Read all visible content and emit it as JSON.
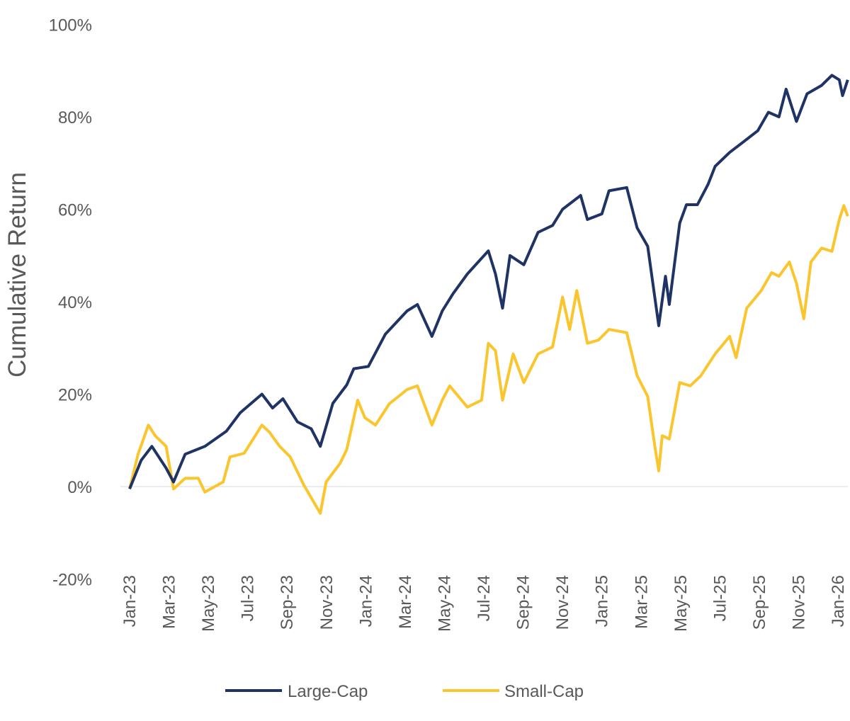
{
  "chart_data": {
    "type": "line",
    "title": "",
    "xlabel": "",
    "ylabel": "Cumulative Return",
    "ylim": [
      -20,
      100
    ],
    "y_ticks": [
      "100%",
      "80%",
      "60%",
      "40%",
      "20%",
      "0%",
      "-20%"
    ],
    "y_tick_values": [
      100,
      80,
      60,
      40,
      20,
      0,
      -20
    ],
    "x_ticks": [
      "Jan-23",
      "Mar-23",
      "May-23",
      "Jul-23",
      "Sep-23",
      "Nov-23",
      "Jan-24",
      "Mar-24",
      "May-24",
      "Jul-24",
      "Sep-24",
      "Nov-24",
      "Jan-25",
      "Mar-25",
      "May-25",
      "Jul-25",
      "Sep-25",
      "Nov-25",
      "Jan-26"
    ],
    "x_tick_dates": [
      "2023-01-01",
      "2023-03-01",
      "2023-05-01",
      "2023-07-01",
      "2023-09-01",
      "2023-11-01",
      "2024-01-01",
      "2024-03-01",
      "2024-05-01",
      "2024-07-01",
      "2024-09-01",
      "2024-11-01",
      "2025-01-01",
      "2025-03-01",
      "2025-05-01",
      "2025-07-01",
      "2025-09-01",
      "2025-11-01",
      "2026-01-01"
    ],
    "grid": "zero line only",
    "legend_position": "bottom",
    "series": [
      {
        "name": "Large-Cap",
        "color": "#1f3464",
        "points": [
          [
            "2023-01-01",
            -0.5
          ],
          [
            "2023-01-19",
            5.7
          ],
          [
            "2023-02-05",
            8.7
          ],
          [
            "2023-02-27",
            4
          ],
          [
            "2023-03-08",
            1
          ],
          [
            "2023-03-26",
            7
          ],
          [
            "2023-04-26",
            8.7
          ],
          [
            "2023-05-29",
            12
          ],
          [
            "2023-06-20",
            16
          ],
          [
            "2023-07-23",
            20
          ],
          [
            "2023-08-09",
            17
          ],
          [
            "2023-08-25",
            19
          ],
          [
            "2023-09-17",
            14
          ],
          [
            "2023-10-08",
            12.5
          ],
          [
            "2023-10-22",
            8.7
          ],
          [
            "2023-11-11",
            18
          ],
          [
            "2023-12-02",
            22
          ],
          [
            "2023-12-13",
            25.5
          ],
          [
            "2024-01-05",
            26
          ],
          [
            "2024-02-01",
            33
          ],
          [
            "2024-03-04",
            38
          ],
          [
            "2024-03-20",
            39.4
          ],
          [
            "2024-04-12",
            32.5
          ],
          [
            "2024-04-28",
            38
          ],
          [
            "2024-05-14",
            41.7
          ],
          [
            "2024-06-06",
            46
          ],
          [
            "2024-07-08",
            51
          ],
          [
            "2024-07-19",
            46
          ],
          [
            "2024-07-30",
            38.6
          ],
          [
            "2024-08-11",
            50
          ],
          [
            "2024-09-02",
            48
          ],
          [
            "2024-09-24",
            55
          ],
          [
            "2024-10-16",
            56.5
          ],
          [
            "2024-11-01",
            60
          ],
          [
            "2024-11-29",
            63
          ],
          [
            "2024-12-09",
            57.8
          ],
          [
            "2025-01-01",
            59
          ],
          [
            "2025-01-12",
            64
          ],
          [
            "2025-02-09",
            64.7
          ],
          [
            "2025-02-25",
            56
          ],
          [
            "2025-03-11",
            52
          ],
          [
            "2025-03-28",
            34.8
          ],
          [
            "2025-04-08",
            45.5
          ],
          [
            "2025-04-14",
            39.4
          ],
          [
            "2025-04-30",
            57
          ],
          [
            "2025-05-10",
            61
          ],
          [
            "2025-05-27",
            61
          ],
          [
            "2025-06-13",
            65.4
          ],
          [
            "2025-06-24",
            69.3
          ],
          [
            "2025-07-16",
            72.3
          ],
          [
            "2025-08-07",
            74.6
          ],
          [
            "2025-08-29",
            77
          ],
          [
            "2025-09-15",
            81
          ],
          [
            "2025-10-01",
            80
          ],
          [
            "2025-10-12",
            86
          ],
          [
            "2025-10-28",
            79
          ],
          [
            "2025-11-14",
            85
          ],
          [
            "2025-12-06",
            86.8
          ],
          [
            "2025-12-22",
            89
          ],
          [
            "2026-01-03",
            88
          ],
          [
            "2026-01-08",
            84.6
          ],
          [
            "2026-01-16",
            88
          ]
        ]
      },
      {
        "name": "Small-Cap",
        "color": "#fbc52d",
        "points": [
          [
            "2023-01-01",
            -0.5
          ],
          [
            "2023-01-14",
            7
          ],
          [
            "2023-01-30",
            13.3
          ],
          [
            "2023-02-10",
            11
          ],
          [
            "2023-02-27",
            8.7
          ],
          [
            "2023-03-08",
            -0.5
          ],
          [
            "2023-03-26",
            1.8
          ],
          [
            "2023-04-16",
            1.8
          ],
          [
            "2023-04-26",
            -1.2
          ],
          [
            "2023-05-24",
            1
          ],
          [
            "2023-06-04",
            6.4
          ],
          [
            "2023-06-26",
            7.2
          ],
          [
            "2023-07-23",
            13.3
          ],
          [
            "2023-08-04",
            11.8
          ],
          [
            "2023-08-20",
            8.7
          ],
          [
            "2023-09-06",
            6.4
          ],
          [
            "2023-09-27",
            0.3
          ],
          [
            "2023-10-22",
            -5.8
          ],
          [
            "2023-10-31",
            1
          ],
          [
            "2023-11-22",
            5
          ],
          [
            "2023-12-02",
            8
          ],
          [
            "2023-12-19",
            18.7
          ],
          [
            "2023-12-30",
            14.9
          ],
          [
            "2024-01-16",
            13.3
          ],
          [
            "2024-02-07",
            17.9
          ],
          [
            "2024-03-04",
            21
          ],
          [
            "2024-03-20",
            21.8
          ],
          [
            "2024-04-12",
            13.3
          ],
          [
            "2024-04-28",
            18.7
          ],
          [
            "2024-05-09",
            21.8
          ],
          [
            "2024-06-06",
            17.2
          ],
          [
            "2024-06-28",
            18.7
          ],
          [
            "2024-07-08",
            31
          ],
          [
            "2024-07-19",
            29.4
          ],
          [
            "2024-07-30",
            18.7
          ],
          [
            "2024-08-16",
            28.7
          ],
          [
            "2024-09-02",
            22.5
          ],
          [
            "2024-09-24",
            28.7
          ],
          [
            "2024-10-16",
            30.2
          ],
          [
            "2024-11-01",
            41
          ],
          [
            "2024-11-12",
            34
          ],
          [
            "2024-11-23",
            42.4
          ],
          [
            "2024-12-09",
            31
          ],
          [
            "2024-12-26",
            31.7
          ],
          [
            "2025-01-12",
            34
          ],
          [
            "2025-02-09",
            33.3
          ],
          [
            "2025-02-25",
            24
          ],
          [
            "2025-03-11",
            19.5
          ],
          [
            "2025-03-22",
            8.7
          ],
          [
            "2025-03-28",
            3.4
          ],
          [
            "2025-04-03",
            11
          ],
          [
            "2025-04-14",
            10.3
          ],
          [
            "2025-04-30",
            22.5
          ],
          [
            "2025-05-16",
            21.8
          ],
          [
            "2025-06-02",
            24
          ],
          [
            "2025-06-24",
            28.7
          ],
          [
            "2025-07-16",
            32.5
          ],
          [
            "2025-07-26",
            27.9
          ],
          [
            "2025-08-12",
            38.6
          ],
          [
            "2025-09-04",
            42.4
          ],
          [
            "2025-09-20",
            46.3
          ],
          [
            "2025-10-01",
            45.5
          ],
          [
            "2025-10-17",
            48.6
          ],
          [
            "2025-10-28",
            44
          ],
          [
            "2025-11-09",
            36.3
          ],
          [
            "2025-11-20",
            48.6
          ],
          [
            "2025-12-06",
            51.6
          ],
          [
            "2025-12-22",
            50.9
          ],
          [
            "2026-01-03",
            57.8
          ],
          [
            "2026-01-10",
            60.8
          ],
          [
            "2026-01-16",
            58.5
          ]
        ]
      }
    ]
  }
}
